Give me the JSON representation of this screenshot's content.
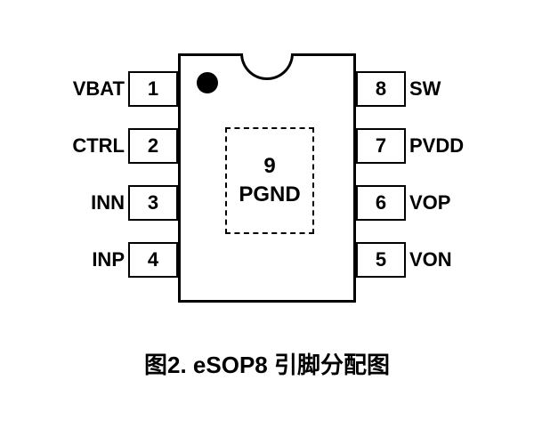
{
  "package": {
    "type": "eSOP8",
    "pin_count": 8,
    "body_color": "#ffffff",
    "border_color": "#000000",
    "border_width": 3,
    "notch": true,
    "pin1_dot": true
  },
  "left_pins": [
    {
      "num": "1",
      "label": "VBAT"
    },
    {
      "num": "2",
      "label": "CTRL"
    },
    {
      "num": "3",
      "label": "INN"
    },
    {
      "num": "4",
      "label": "INP"
    }
  ],
  "right_pins": [
    {
      "num": "8",
      "label": "SW"
    },
    {
      "num": "7",
      "label": "PVDD"
    },
    {
      "num": "6",
      "label": "VOP"
    },
    {
      "num": "5",
      "label": "VON"
    }
  ],
  "center_pad": {
    "num": "9",
    "label": "PGND",
    "border_style": "dashed"
  },
  "caption": "图2. eSOP8 引脚分配图",
  "text_color": "#000000",
  "font_size_label": 22,
  "font_size_caption": 26
}
